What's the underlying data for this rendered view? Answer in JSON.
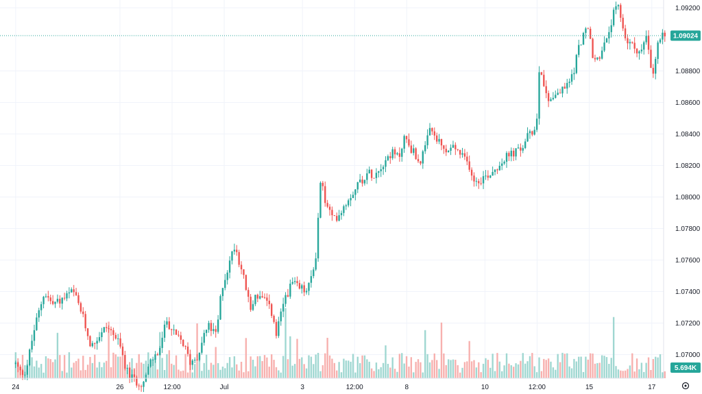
{
  "chart_data": {
    "type": "candlestick",
    "colors": {
      "up": "#26a69a",
      "down": "#ef5350",
      "grid": "#f0f3fa",
      "last_line": "#26a69a",
      "volume_up": "#9fd7d1",
      "volume_down": "#f7b0ae",
      "badge": "#26a69a"
    },
    "y_axis": {
      "ticks": [
        "1.09200",
        "1.08800",
        "1.08600",
        "1.08400",
        "1.08200",
        "1.08000",
        "1.07800",
        "1.07600",
        "1.07400",
        "1.07200",
        "1.07000"
      ],
      "tick_values": [
        1.092,
        1.088,
        1.086,
        1.084,
        1.082,
        1.08,
        1.078,
        1.076,
        1.074,
        1.072,
        1.07
      ],
      "range": [
        1.0685,
        1.0925
      ]
    },
    "x_axis": {
      "labels": [
        "24",
        "26",
        "12:00",
        "Jul",
        "3",
        "12:00",
        "8",
        "10",
        "12:00",
        "15",
        "17"
      ],
      "positions": [
        0.0,
        2.0,
        3.0,
        4.0,
        5.5,
        6.5,
        7.5,
        9.0,
        10.0,
        11.0,
        12.2
      ],
      "range": [
        -0.3,
        12.4
      ]
    },
    "last_price": {
      "label": "1.09024",
      "value": 1.09024
    },
    "volume_badge": {
      "label": "5.694K",
      "value": 5694
    },
    "price_path": [
      [
        0.0,
        1.0694
      ],
      [
        0.1,
        1.0688
      ],
      [
        0.2,
        1.069
      ],
      [
        0.35,
        1.0715
      ],
      [
        0.55,
        1.074
      ],
      [
        0.7,
        1.0732
      ],
      [
        0.9,
        1.0735
      ],
      [
        1.1,
        1.074
      ],
      [
        1.25,
        1.0728
      ],
      [
        1.45,
        1.0705
      ],
      [
        1.6,
        1.0712
      ],
      [
        1.75,
        1.0718
      ],
      [
        1.9,
        1.0712
      ],
      [
        2.0,
        1.0705
      ],
      [
        2.15,
        1.0688
      ],
      [
        2.3,
        1.0683
      ],
      [
        2.45,
        1.0682
      ],
      [
        2.6,
        1.0696
      ],
      [
        2.75,
        1.0702
      ],
      [
        2.9,
        1.0722
      ],
      [
        3.05,
        1.0712
      ],
      [
        3.2,
        1.0708
      ],
      [
        3.35,
        1.0695
      ],
      [
        3.5,
        1.07
      ],
      [
        3.6,
        1.0712
      ],
      [
        3.7,
        1.0718
      ],
      [
        3.85,
        1.0712
      ],
      [
        3.95,
        1.0742
      ],
      [
        4.1,
        1.0758
      ],
      [
        4.2,
        1.077
      ],
      [
        4.3,
        1.0758
      ],
      [
        4.4,
        1.0745
      ],
      [
        4.5,
        1.0728
      ],
      [
        4.6,
        1.0738
      ],
      [
        4.75,
        1.0735
      ],
      [
        4.9,
        1.0728
      ],
      [
        5.0,
        1.0712
      ],
      [
        5.15,
        1.0735
      ],
      [
        5.3,
        1.0745
      ],
      [
        5.45,
        1.0742
      ],
      [
        5.6,
        1.074
      ],
      [
        5.75,
        1.076
      ],
      [
        5.85,
        1.0812
      ],
      [
        5.95,
        1.0795
      ],
      [
        6.1,
        1.0785
      ],
      [
        6.25,
        1.0792
      ],
      [
        6.4,
        1.08
      ],
      [
        6.55,
        1.0808
      ],
      [
        6.75,
        1.0815
      ],
      [
        6.9,
        1.0815
      ],
      [
        7.05,
        1.0822
      ],
      [
        7.2,
        1.0828
      ],
      [
        7.35,
        1.0825
      ],
      [
        7.45,
        1.0838
      ],
      [
        7.6,
        1.083
      ],
      [
        7.75,
        1.0822
      ],
      [
        7.85,
        1.083
      ],
      [
        7.95,
        1.0843
      ],
      [
        8.1,
        1.0835
      ],
      [
        8.25,
        1.0828
      ],
      [
        8.4,
        1.0832
      ],
      [
        8.55,
        1.0826
      ],
      [
        8.7,
        1.082
      ],
      [
        8.8,
        1.081
      ],
      [
        8.95,
        1.0812
      ],
      [
        9.1,
        1.0815
      ],
      [
        9.25,
        1.082
      ],
      [
        9.4,
        1.0825
      ],
      [
        9.55,
        1.0828
      ],
      [
        9.7,
        1.083
      ],
      [
        9.8,
        1.0838
      ],
      [
        9.9,
        1.084
      ],
      [
        10.0,
        1.085
      ],
      [
        10.05,
        1.0888
      ],
      [
        10.12,
        1.0872
      ],
      [
        10.2,
        1.0862
      ],
      [
        10.35,
        1.0865
      ],
      [
        10.5,
        1.0868
      ],
      [
        10.6,
        1.0872
      ],
      [
        10.7,
        1.088
      ],
      [
        10.8,
        1.0895
      ],
      [
        10.9,
        1.0905
      ],
      [
        11.0,
        1.0905
      ],
      [
        11.08,
        1.0885
      ],
      [
        11.2,
        1.089
      ],
      [
        11.35,
        1.09
      ],
      [
        11.45,
        1.0915
      ],
      [
        11.55,
        1.092
      ],
      [
        11.62,
        1.0912
      ],
      [
        11.7,
        1.09
      ],
      [
        11.85,
        1.0895
      ],
      [
        12.0,
        1.0892
      ],
      [
        12.1,
        1.0902
      ],
      [
        12.15,
        1.0888
      ],
      [
        12.22,
        1.0875
      ],
      [
        12.3,
        1.0895
      ],
      [
        12.38,
        1.0902
      ],
      [
        12.45,
        1.09
      ]
    ]
  }
}
